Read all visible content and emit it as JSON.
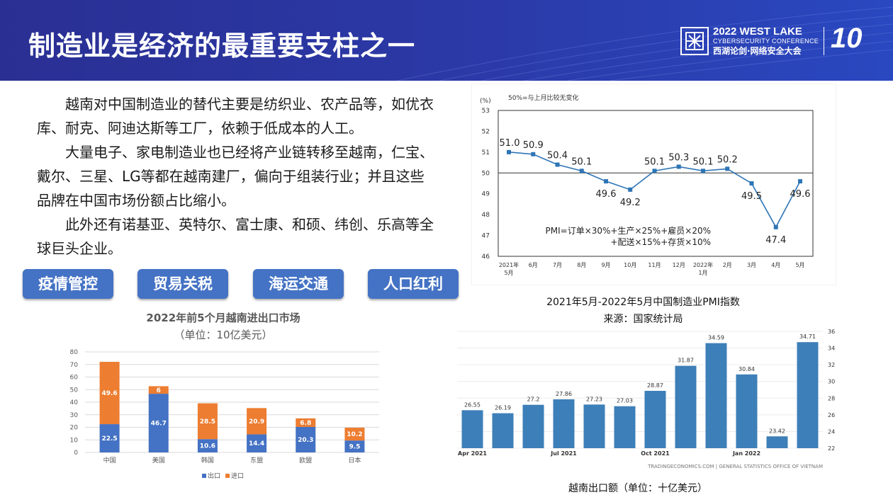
{
  "header": {
    "title": "制造业是经济的最重要支柱之一",
    "logo_line1": "2022 WEST LAKE",
    "logo_line2": "CYBERSECURITY CONFERENCE",
    "logo_line3": "西湖论剑·网络安全大会",
    "logo_badge": "10"
  },
  "paragraphs": [
    "越南对中国制造业的替代主要是纺织业、农产品等，如优衣库、耐克、阿迪达斯等工厂，依赖于低成本的人工。",
    "大量电子、家电制造业也已经将产业链转移至越南，仁宝、戴尔、三星、LG等都在越南建厂，偏向于组装行业；并且这些品牌在中国市场份额占比缩小。",
    "此外还有诺基亚、英特尔、富士康、和硕、纬创、乐高等全球巨头企业。"
  ],
  "tags": [
    "疫情管控",
    "贸易关税",
    "海运交通",
    "人口红利"
  ],
  "colors": {
    "header_blue": "#2b3aa8",
    "tag_blue": "#4472c4",
    "export_blue": "#4472c4",
    "import_orange": "#ed7d31",
    "pmi_line": "#2e75b6",
    "te_bar": "#3d7fb8"
  },
  "trade_chart": {
    "title_line1": "2022年前5个月越南进出口市场",
    "title_line2": "（单位：10亿美元）"
  },
  "pmi_panel": {
    "caption_line1": "2021年5月-2022年5月中国制造业PMI指数",
    "caption_line2": "来源：国家统计局"
  },
  "exports_panel": {
    "caption": "越南出口额（单位：十亿美元）"
  },
  "chart_data": [
    {
      "type": "bar",
      "stacked": true,
      "categories": [
        "中国",
        "美国",
        "韩国",
        "东盟",
        "欧盟",
        "日本"
      ],
      "series": [
        {
          "name": "出口",
          "values": [
            22.5,
            46.7,
            10.6,
            14.4,
            20.3,
            9.5
          ]
        },
        {
          "name": "进口",
          "values": [
            49.6,
            6,
            28.5,
            20.9,
            6.8,
            10.2
          ]
        }
      ],
      "ylim": [
        0,
        80
      ],
      "yticks": [
        0,
        10,
        20,
        30,
        40,
        50,
        60,
        70,
        80
      ],
      "grid": true,
      "legend": "bottom"
    },
    {
      "type": "line",
      "unit_label": "(%)",
      "note": "50%=与上月比较无变化",
      "x": [
        "2021年5月",
        "6月",
        "7月",
        "8月",
        "9月",
        "10月",
        "11月",
        "12月",
        "2022年1月",
        "2月",
        "3月",
        "4月",
        "5月"
      ],
      "values": [
        51.0,
        50.9,
        50.4,
        50.1,
        49.6,
        49.2,
        50.1,
        50.3,
        50.1,
        50.2,
        49.5,
        47.4,
        49.6
      ],
      "labels": [
        "51.0",
        "50.9",
        "50.4",
        "50.1",
        "49.6",
        "49.2",
        "50.1",
        "50.3",
        "50.1",
        "50.2",
        "49.5",
        "47.4",
        "49.6"
      ],
      "ylim": [
        46,
        53
      ],
      "yticks": [
        46,
        47,
        48,
        49,
        50,
        51,
        52,
        53
      ],
      "reference_line": 50,
      "formula_line1": "PMI=订单×30%+生产×25%+雇员×20%",
      "formula_line2": "+配送×15%+存货×10%"
    },
    {
      "type": "bar",
      "values": [
        26.55,
        26.19,
        27.2,
        27.86,
        27.23,
        27.03,
        28.87,
        31.87,
        34.59,
        30.84,
        23.42,
        34.71
      ],
      "x_ticks": [
        "Apr 2021",
        "Jul 2021",
        "Oct 2021",
        "Jan 2022"
      ],
      "ylim": [
        22,
        36
      ],
      "yticks": [
        22,
        24,
        26,
        28,
        30,
        32,
        34,
        36
      ],
      "y_axis_side": "right",
      "source": "TRADINGECONOMICS.COM | GENERAL STATISTICS OFFICE OF VIETNAM"
    }
  ]
}
